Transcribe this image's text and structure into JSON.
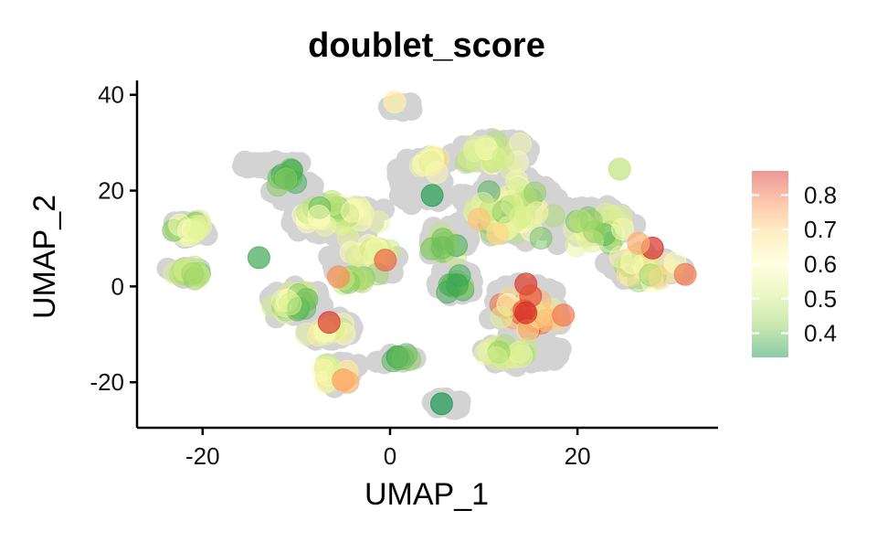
{
  "chart_data": {
    "type": "scatter",
    "title": "doublet_score",
    "xlabel": "UMAP_1",
    "ylabel": "UMAP_2",
    "xlim": [
      -27,
      35
    ],
    "ylim": [
      -29.5,
      43
    ],
    "x_ticks": [
      {
        "value": -20,
        "label": "-20"
      },
      {
        "value": 0,
        "label": "0"
      },
      {
        "value": 20,
        "label": "20"
      }
    ],
    "y_ticks": [
      {
        "value": -20,
        "label": "-20"
      },
      {
        "value": 0,
        "label": "0"
      },
      {
        "value": 20,
        "label": "20"
      },
      {
        "value": 40,
        "label": "40"
      }
    ],
    "grid": false,
    "legend": {
      "placement": "right",
      "type": "colorbar",
      "range": [
        0.33,
        0.87
      ],
      "ticks": [
        {
          "value": 0.8,
          "label": "0.8"
        },
        {
          "value": 0.7,
          "label": "0.7"
        },
        {
          "value": 0.6,
          "label": "0.6"
        },
        {
          "value": 0.5,
          "label": "0.5"
        },
        {
          "value": 0.4,
          "label": "0.4"
        }
      ],
      "colormap": [
        "#1a9850",
        "#91cf60",
        "#d9ef8b",
        "#ffffbf",
        "#fee08b",
        "#fc8d59",
        "#d73027"
      ],
      "alpha": 0.5
    },
    "background_point_color": "#d3d3d3",
    "background_clusters": [
      {
        "cx": -21.5,
        "cy": 12,
        "rx": 2.6,
        "ry": 2.5
      },
      {
        "cx": -21.5,
        "cy": 3,
        "rx": 2.6,
        "ry": 1.8
      },
      {
        "cx": -13,
        "cy": 25.5,
        "rx": 4.5,
        "ry": 1.5
      },
      {
        "cx": -10.5,
        "cy": 20,
        "rx": 3.5,
        "ry": 3
      },
      {
        "cx": -6,
        "cy": 14,
        "rx": 6,
        "ry": 4.5
      },
      {
        "cx": -3,
        "cy": 5,
        "rx": 5,
        "ry": 5
      },
      {
        "cx": -10,
        "cy": -3,
        "rx": 4,
        "ry": 4
      },
      {
        "cx": -6.5,
        "cy": -9,
        "rx": 3.5,
        "ry": 3
      },
      {
        "cx": -5.5,
        "cy": -18,
        "rx": 2.8,
        "ry": 3.5
      },
      {
        "cx": 0.5,
        "cy": -15,
        "rx": 2.5,
        "ry": 1.2
      },
      {
        "cx": 1,
        "cy": 37.5,
        "rx": 2.5,
        "ry": 1.2
      },
      {
        "cx": 3,
        "cy": 22,
        "rx": 3.5,
        "ry": 7
      },
      {
        "cx": 6,
        "cy": 10,
        "rx": 3,
        "ry": 4
      },
      {
        "cx": 7,
        "cy": 1,
        "rx": 2.5,
        "ry": 4
      },
      {
        "cx": 6,
        "cy": -24.5,
        "rx": 2.2,
        "ry": 1.5
      },
      {
        "cx": 11,
        "cy": 28,
        "rx": 5,
        "ry": 4
      },
      {
        "cx": 13,
        "cy": 16,
        "rx": 7,
        "ry": 8
      },
      {
        "cx": 15,
        "cy": -5,
        "rx": 5,
        "ry": 7
      },
      {
        "cx": 14,
        "cy": -14,
        "rx": 5,
        "ry": 3
      },
      {
        "cx": 22,
        "cy": 13,
        "rx": 5,
        "ry": 5
      },
      {
        "cx": 27,
        "cy": 4,
        "rx": 5,
        "ry": 4
      }
    ],
    "clusters": [
      {
        "cx": -21.5,
        "cy": 12,
        "rx": 2.3,
        "ry": 2.2,
        "n": 24,
        "lo": 0.38,
        "hi": 0.62
      },
      {
        "cx": -21.5,
        "cy": 3,
        "rx": 2.3,
        "ry": 1.5,
        "n": 16,
        "lo": 0.38,
        "hi": 0.6
      },
      {
        "cx": -11,
        "cy": 23,
        "rx": 2.5,
        "ry": 2.5,
        "n": 12,
        "lo": 0.33,
        "hi": 0.47
      },
      {
        "cx": -6,
        "cy": 15,
        "rx": 5.5,
        "ry": 3.5,
        "n": 36,
        "lo": 0.38,
        "hi": 0.62
      },
      {
        "cx": -2,
        "cy": 8,
        "rx": 3.5,
        "ry": 3.5,
        "n": 18,
        "lo": 0.46,
        "hi": 0.64
      },
      {
        "cx": -3.5,
        "cy": 1.5,
        "rx": 3,
        "ry": 2,
        "n": 10,
        "lo": 0.4,
        "hi": 0.55
      },
      {
        "cx": -10,
        "cy": -3.5,
        "rx": 3.5,
        "ry": 3.5,
        "n": 24,
        "lo": 0.36,
        "hi": 0.6
      },
      {
        "cx": -7,
        "cy": -9.5,
        "rx": 3,
        "ry": 2.5,
        "n": 14,
        "lo": 0.45,
        "hi": 0.66
      },
      {
        "cx": -6,
        "cy": -18,
        "rx": 2.5,
        "ry": 3,
        "n": 14,
        "lo": 0.48,
        "hi": 0.7
      },
      {
        "cx": 1,
        "cy": -15,
        "rx": 2,
        "ry": 1,
        "n": 7,
        "lo": 0.33,
        "hi": 0.42
      },
      {
        "cx": 4.5,
        "cy": 26,
        "rx": 2.5,
        "ry": 3,
        "n": 12,
        "lo": 0.5,
        "hi": 0.72
      },
      {
        "cx": 6,
        "cy": 9,
        "rx": 2.2,
        "ry": 4,
        "n": 12,
        "lo": 0.34,
        "hi": 0.5
      },
      {
        "cx": 7,
        "cy": 0,
        "rx": 2,
        "ry": 2.5,
        "n": 10,
        "lo": 0.33,
        "hi": 0.42
      },
      {
        "cx": 11,
        "cy": 28,
        "rx": 4,
        "ry": 4,
        "n": 20,
        "lo": 0.45,
        "hi": 0.62
      },
      {
        "cx": 13,
        "cy": 16,
        "rx": 6,
        "ry": 7,
        "n": 48,
        "lo": 0.36,
        "hi": 0.66
      },
      {
        "cx": 15,
        "cy": -5,
        "rx": 4.5,
        "ry": 6,
        "n": 38,
        "lo": 0.5,
        "hi": 0.86
      },
      {
        "cx": 13,
        "cy": -14,
        "rx": 4,
        "ry": 2,
        "n": 16,
        "lo": 0.38,
        "hi": 0.56
      },
      {
        "cx": 22,
        "cy": 12,
        "rx": 4.5,
        "ry": 5,
        "n": 28,
        "lo": 0.36,
        "hi": 0.58
      },
      {
        "cx": 27,
        "cy": 4,
        "rx": 4,
        "ry": 3.5,
        "n": 24,
        "lo": 0.4,
        "hi": 0.7
      }
    ],
    "highlight_points": [
      {
        "x": 0.5,
        "y": 38.5,
        "value": 0.64
      },
      {
        "x": -0.5,
        "y": 5.5,
        "value": 0.82
      },
      {
        "x": -5.5,
        "y": 2,
        "value": 0.78
      },
      {
        "x": -6.5,
        "y": -7.5,
        "value": 0.86
      },
      {
        "x": -5,
        "y": -19.5,
        "value": 0.76
      },
      {
        "x": -4.5,
        "y": -20,
        "value": 0.74
      },
      {
        "x": 5.5,
        "y": -24.5,
        "value": 0.33
      },
      {
        "x": 4.5,
        "y": 19,
        "value": 0.34
      },
      {
        "x": 14.5,
        "y": 0.5,
        "value": 0.86
      },
      {
        "x": 15,
        "y": -2,
        "value": 0.84
      },
      {
        "x": 14.5,
        "y": -5.5,
        "value": 0.87
      },
      {
        "x": 18.5,
        "y": -6,
        "value": 0.8
      },
      {
        "x": 28,
        "y": 8,
        "value": 0.87
      },
      {
        "x": 31.5,
        "y": 2.5,
        "value": 0.8
      },
      {
        "x": 26.5,
        "y": 9,
        "value": 0.74
      },
      {
        "x": -14,
        "y": 6,
        "value": 0.36
      },
      {
        "x": 9.5,
        "y": 14,
        "value": 0.72
      },
      {
        "x": 11.5,
        "y": 11,
        "value": 0.7
      },
      {
        "x": 24.5,
        "y": 24.5,
        "value": 0.48
      }
    ]
  }
}
